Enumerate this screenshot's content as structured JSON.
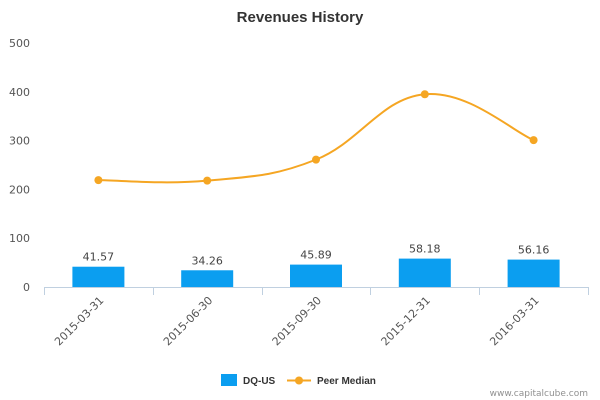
{
  "chart_data": {
    "type": "bar",
    "title": "Revenues History",
    "xlabel": "",
    "ylabel": "",
    "ylim": [
      0,
      500
    ],
    "yticks": [
      "0",
      "100",
      "200",
      "300",
      "400",
      "500"
    ],
    "categories": [
      "2015-03-31",
      "2015-06-30",
      "2015-09-30",
      "2015-12-31",
      "2016-03-31"
    ],
    "series": [
      {
        "name": "DQ-US",
        "type": "bar",
        "color": "#0b9ef0",
        "values": [
          41.57,
          34.26,
          45.89,
          58.18,
          56.16
        ],
        "labels": [
          "41.57",
          "34.26",
          "45.89",
          "58.18",
          "56.16"
        ]
      },
      {
        "name": "Peer Median",
        "type": "line",
        "smooth": true,
        "color": "#f5a623",
        "values": [
          219,
          218,
          261,
          395,
          301
        ]
      }
    ],
    "grid": false,
    "legend": "bottom-center"
  },
  "credit": "www.capitalcube.com"
}
